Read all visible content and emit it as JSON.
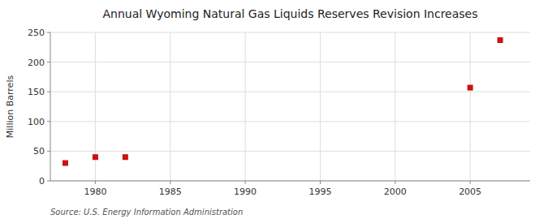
{
  "chart_data": {
    "type": "scatter",
    "title": "Annual Wyoming Natural Gas Liquids Reserves Revision Increases",
    "ylabel": "Million Barrels",
    "source": "Source: U.S. Energy Information Administration",
    "x": [
      1978,
      1980,
      1982,
      2005,
      2007
    ],
    "values": [
      30,
      40,
      40,
      157,
      237
    ],
    "color": "#cc1111",
    "marker": "square",
    "xlim": [
      1977,
      2009
    ],
    "ylim": [
      0,
      250
    ],
    "xticks": [
      1980,
      1985,
      1990,
      1995,
      2000,
      2005
    ],
    "yticks": [
      0,
      50,
      100,
      150,
      200,
      250
    ],
    "grid": true
  }
}
